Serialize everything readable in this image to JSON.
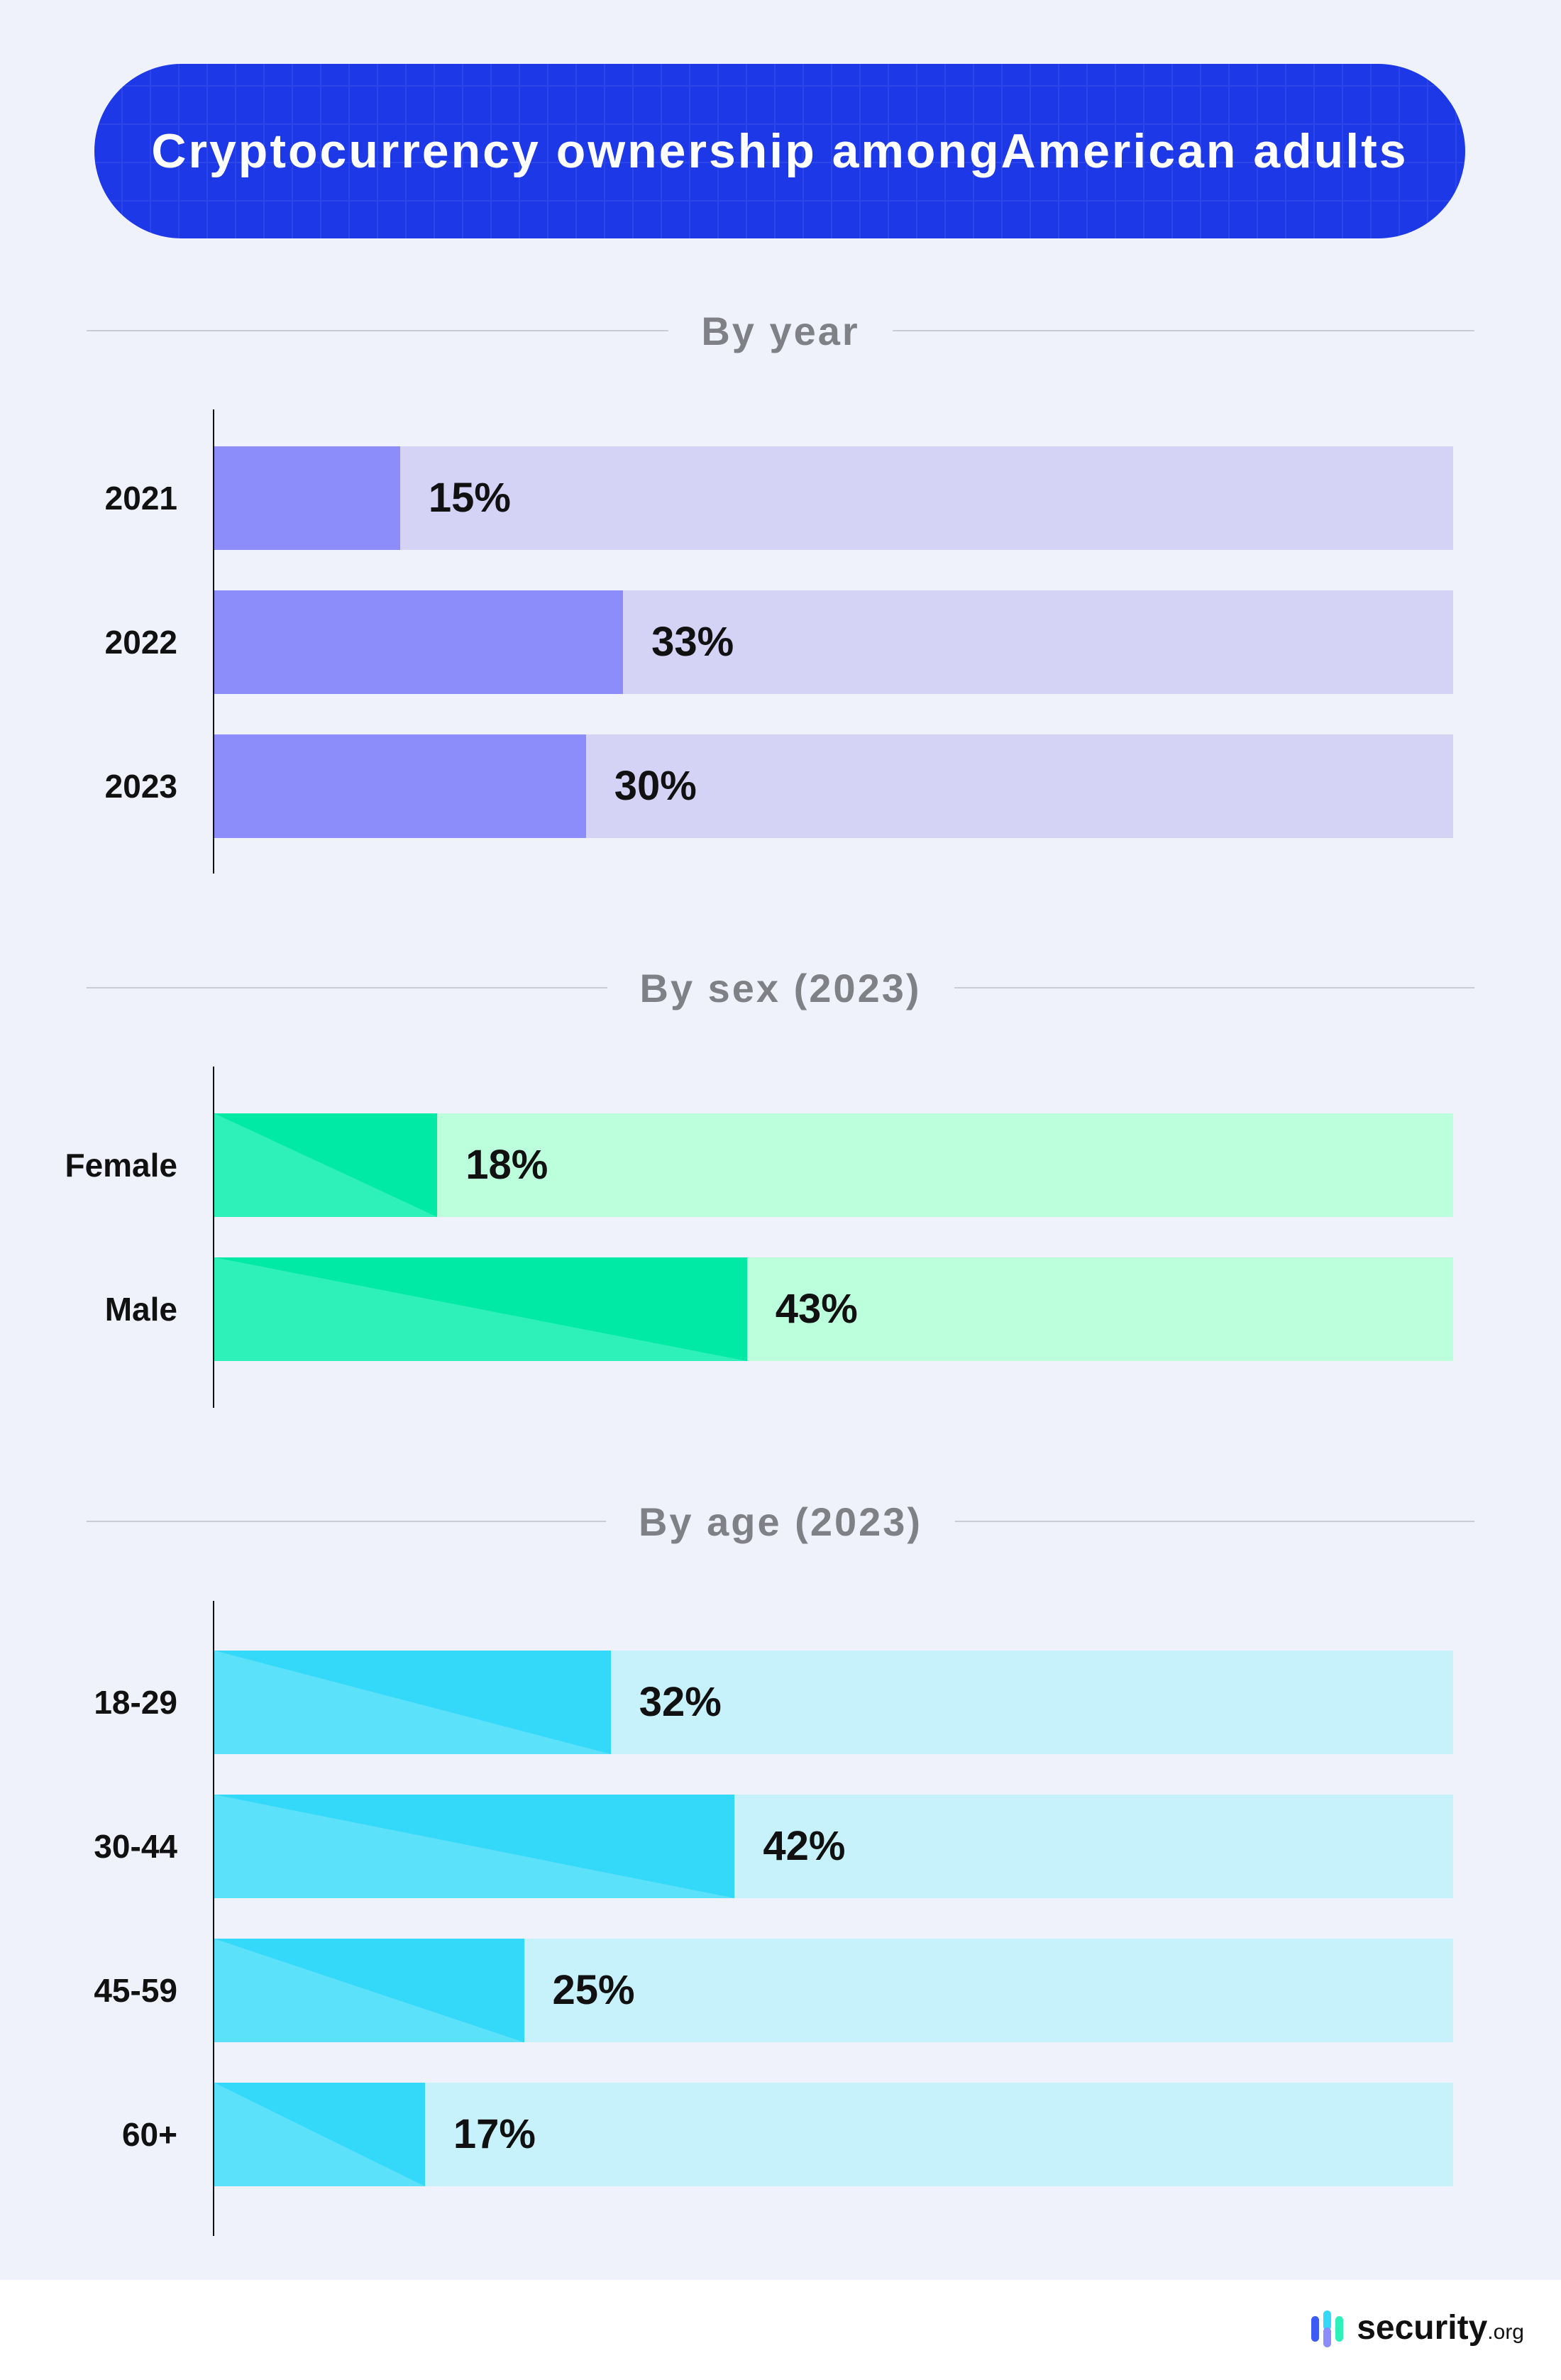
{
  "title": "Cryptocurrency ownership among American adults",
  "title_lines": [
    "Cryptocurrency ownership among",
    "American adults"
  ],
  "chart_data": [
    {
      "type": "bar",
      "orientation": "horizontal",
      "title": "By year",
      "categories": [
        "2021",
        "2022",
        "2023"
      ],
      "values": [
        15,
        33,
        30
      ],
      "value_labels": [
        "15%",
        "33%",
        "30%"
      ],
      "xlim": [
        0,
        100
      ],
      "colors": {
        "fill": "#8c8cfb",
        "fill_light": "#8c8cfb",
        "track": "#d4d2f5"
      }
    },
    {
      "type": "bar",
      "orientation": "horizontal",
      "title": "By sex (2023)",
      "categories": [
        "Female",
        "Male"
      ],
      "values": [
        18,
        43
      ],
      "value_labels": [
        "18%",
        "43%"
      ],
      "xlim": [
        0,
        100
      ],
      "colors": {
        "fill": "#00eaa6",
        "fill_light": "#2ef0b9",
        "track": "#bbffdc"
      }
    },
    {
      "type": "bar",
      "orientation": "horizontal",
      "title": "By age (2023)",
      "categories": [
        "18-29",
        "30-44",
        "45-59",
        "60+"
      ],
      "values": [
        32,
        42,
        25,
        17
      ],
      "value_labels": [
        "32%",
        "42%",
        "25%",
        "17%"
      ],
      "xlim": [
        0,
        100
      ],
      "colors": {
        "fill": "#34d8f8",
        "fill_light": "#5ce1fb",
        "track": "#c8f2fb"
      }
    }
  ],
  "footer": {
    "logo_text": "security",
    "logo_tld": ".org"
  },
  "colors": {
    "background": "#eff1fb",
    "header": "#1d38e6"
  }
}
